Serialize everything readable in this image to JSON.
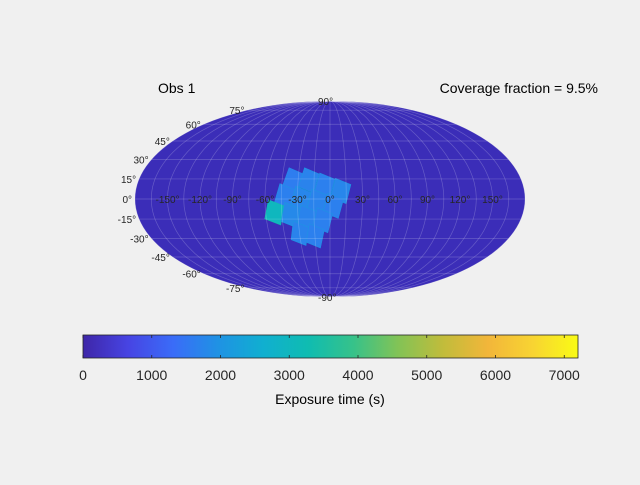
{
  "chart_data": {
    "type": "heatmap",
    "projection": "mollweide",
    "title_left": "Obs 1",
    "title_right": "Coverage fraction = 9.5%",
    "background_color": "#3b2db8",
    "lon_tick_labels": [
      "-150°",
      "-120°",
      "-90°",
      "-60°",
      "-30°",
      "0°",
      "30°",
      "60°",
      "90°",
      "120°",
      "150°"
    ],
    "lon_ticks": [
      -150,
      -120,
      -90,
      -60,
      -30,
      0,
      30,
      60,
      90,
      120,
      150
    ],
    "lat_tick_labels": [
      "90°",
      "75°",
      "60°",
      "45°",
      "30°",
      "15°",
      "0°",
      "-15°",
      "-30°",
      "-45°",
      "-60°",
      "-75°",
      "-90°"
    ],
    "lat_ticks": [
      90,
      75,
      60,
      45,
      30,
      15,
      0,
      -15,
      -30,
      -45,
      -60,
      -75,
      -90
    ],
    "coverage_patch": {
      "description_values": "exposure tiles near lon -60..30, lat -30..20",
      "tiles": [
        {
          "lon": -35,
          "lat": 14,
          "exposure": 1600
        },
        {
          "lon": -20,
          "lat": 14,
          "exposure": 1700
        },
        {
          "lon": -5,
          "lat": 10,
          "exposure": 1650
        },
        {
          "lon": 10,
          "lat": 6,
          "exposure": 1750
        },
        {
          "lon": -42,
          "lat": 2,
          "exposure": 1650
        },
        {
          "lon": -27,
          "lat": 0,
          "exposure": 1750
        },
        {
          "lon": -12,
          "lat": -2,
          "exposure": 1700
        },
        {
          "lon": 3,
          "lat": -5,
          "exposure": 1650
        },
        {
          "lon": -52,
          "lat": -10,
          "exposure": 3000
        },
        {
          "lon": -37,
          "lat": -12,
          "exposure": 1800
        },
        {
          "lon": -22,
          "lat": -14,
          "exposure": 1700
        },
        {
          "lon": -7,
          "lat": -16,
          "exposure": 1650
        },
        {
          "lon": -30,
          "lat": -26,
          "exposure": 1700
        },
        {
          "lon": -15,
          "lat": -28,
          "exposure": 1650
        }
      ]
    },
    "colorbar": {
      "label": "Exposure time (s)",
      "range": [
        0,
        7200
      ],
      "tick_values": [
        0,
        1000,
        2000,
        3000,
        4000,
        5000,
        6000,
        7000
      ],
      "tick_labels": [
        "0",
        "1000",
        "2000",
        "3000",
        "4000",
        "5000",
        "6000",
        "7000"
      ],
      "colormap": [
        "#3e26a8",
        "#4744e3",
        "#3a6cf8",
        "#1f92e4",
        "#10afd0",
        "#0fbcb1",
        "#36c28a",
        "#82c356",
        "#c1bc3b",
        "#f2b63a",
        "#f8d432",
        "#f9fb15"
      ]
    }
  }
}
